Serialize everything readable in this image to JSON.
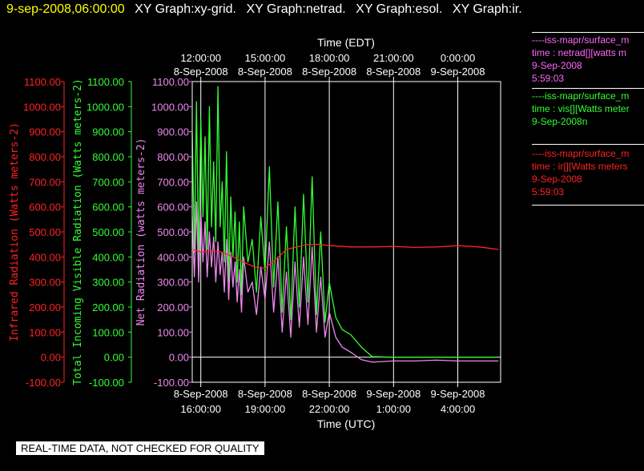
{
  "header": {
    "timestamp": "9-sep-2008,06:00:00",
    "graphs": [
      "XY Graph:xy-grid.",
      "XY Graph:netrad.",
      "XY Graph:esol.",
      "XY Graph:ir."
    ]
  },
  "legend": [
    {
      "color": "#ff66ff",
      "lines": [
        "----iss-mapr/surface_m",
        "time : netrad[][watts m",
        "9-Sep-2008",
        "5:59:03"
      ]
    },
    {
      "color": "#33ff33",
      "lines": [
        "----iss-mapr/surface_m",
        "time : vis[][Watts meter",
        "9-Sep-2008n"
      ]
    },
    {
      "color": "#ff2222",
      "lines": [
        "----iss-mapr/surface_m",
        "time : ir[][Watts meters",
        "9-Sep-2008",
        "5:59:03"
      ]
    }
  ],
  "footer": "REAL-TIME DATA, NOT CHECKED FOR QUALITY",
  "colors": {
    "ir": "#ff2222",
    "vis": "#33ff33",
    "net": "#ee88ee",
    "grid": "#ffffff",
    "overlap": "#bbbbbb"
  },
  "chart_data": {
    "type": "line",
    "top_axis": {
      "title": "Time (EDT)",
      "ticks": [
        {
          "x": 16,
          "line1": "12:00:00",
          "line2": "8-Sep-2008"
        },
        {
          "x": 19,
          "line1": "15:00:00",
          "line2": "8-Sep-2008"
        },
        {
          "x": 22,
          "line1": "18:00:00",
          "line2": "8-Sep-2008"
        },
        {
          "x": 25,
          "line1": "21:00:00",
          "line2": "8-Sep-2008"
        },
        {
          "x": 28,
          "line1": "0:00:00",
          "line2": "9-Sep-2008"
        }
      ]
    },
    "bottom_axis": {
      "title": "Time (UTC)",
      "ticks": [
        {
          "x": 16,
          "line1": "8-Sep-2008",
          "line2": "16:00:00"
        },
        {
          "x": 19,
          "line1": "8-Sep-2008",
          "line2": "19:00:00"
        },
        {
          "x": 22,
          "line1": "8-Sep-2008",
          "line2": "22:00:00"
        },
        {
          "x": 25,
          "line1": "9-Sep-2008",
          "line2": "1:00:00"
        },
        {
          "x": 28,
          "line1": "9-Sep-2008",
          "line2": "4:00:00"
        }
      ]
    },
    "x_unit": "hours UTC from 8-Sep-2008 00:00",
    "xlim": [
      15.6,
      30.0
    ],
    "ylim": [
      -100,
      1100
    ],
    "y_ticks": [
      -100,
      0,
      100,
      200,
      300,
      400,
      500,
      600,
      700,
      800,
      900,
      1000,
      1100
    ],
    "y_tick_labels": [
      "-100.00",
      "0.00",
      "100.00",
      "200.00",
      "300.00",
      "400.00",
      "500.00",
      "600.00",
      "700.00",
      "800.00",
      "900.00",
      "1000.00",
      "1100.00"
    ],
    "y_axes": [
      {
        "label": "Infrared Radiation (Watts meters-2)",
        "color": "#ff2222"
      },
      {
        "label": "Total Incoming Visible Radiation (Watts meters-2)",
        "color": "#33ff33"
      },
      {
        "label": "Net Radiation (watts meters-2)",
        "color": "#ee88ee"
      }
    ],
    "series": [
      {
        "name": "vis",
        "color": "#33ff33",
        "x": [
          15.6,
          15.7,
          15.8,
          15.9,
          16.0,
          16.1,
          16.2,
          16.3,
          16.4,
          16.5,
          16.6,
          16.7,
          16.8,
          16.9,
          17.0,
          17.1,
          17.2,
          17.3,
          17.4,
          17.5,
          17.6,
          17.7,
          17.8,
          17.9,
          18.0,
          18.2,
          18.4,
          18.6,
          18.8,
          19.0,
          19.2,
          19.4,
          19.6,
          19.8,
          20.0,
          20.2,
          20.4,
          20.6,
          20.8,
          21.0,
          21.2,
          21.4,
          21.6,
          21.8,
          22.0,
          22.3,
          22.6,
          23.0,
          23.5,
          24.0,
          25.0,
          26.0,
          27.0,
          28.0,
          29.0,
          29.9
        ],
        "y": [
          900,
          420,
          1020,
          380,
          950,
          560,
          880,
          430,
          1000,
          520,
          780,
          460,
          1080,
          520,
          700,
          380,
          820,
          300,
          640,
          400,
          580,
          300,
          540,
          250,
          600,
          380,
          470,
          260,
          560,
          340,
          760,
          280,
          620,
          180,
          520,
          150,
          600,
          200,
          650,
          220,
          720,
          170,
          500,
          140,
          300,
          160,
          110,
          90,
          40,
          2,
          0,
          0,
          0,
          0,
          0,
          0
        ]
      },
      {
        "name": "net",
        "color": "#ee88ee",
        "x": [
          15.6,
          15.7,
          15.8,
          15.9,
          16.0,
          16.1,
          16.2,
          16.3,
          16.4,
          16.5,
          16.6,
          16.7,
          16.8,
          16.9,
          17.0,
          17.1,
          17.2,
          17.3,
          17.4,
          17.5,
          17.6,
          17.7,
          17.8,
          17.9,
          18.0,
          18.2,
          18.4,
          18.6,
          18.8,
          19.0,
          19.2,
          19.4,
          19.6,
          19.8,
          20.0,
          20.2,
          20.4,
          20.6,
          20.8,
          21.0,
          21.2,
          21.4,
          21.6,
          21.8,
          22.0,
          22.3,
          22.6,
          23.0,
          23.5,
          24.0,
          25.0,
          26.0,
          27.0,
          28.0,
          29.0,
          29.9
        ],
        "y": [
          560,
          320,
          620,
          300,
          580,
          380,
          540,
          320,
          500,
          360,
          480,
          300,
          460,
          330,
          420,
          260,
          470,
          230,
          420,
          280,
          380,
          220,
          350,
          180,
          400,
          260,
          300,
          170,
          360,
          230,
          460,
          180,
          400,
          100,
          340,
          80,
          380,
          120,
          400,
          130,
          440,
          100,
          320,
          80,
          180,
          80,
          40,
          20,
          -10,
          -20,
          -15,
          -15,
          -12,
          -15,
          -15,
          -15
        ]
      },
      {
        "name": "ir",
        "color": "#ff2222",
        "x": [
          15.6,
          16.0,
          16.5,
          17.0,
          17.5,
          18.0,
          18.5,
          19.0,
          19.5,
          20.0,
          20.5,
          21.0,
          21.5,
          22.0,
          23.0,
          24.0,
          25.0,
          26.0,
          27.0,
          28.0,
          29.0,
          29.9
        ],
        "y": [
          430,
          420,
          425,
          420,
          400,
          380,
          360,
          355,
          390,
          430,
          440,
          450,
          450,
          445,
          440,
          440,
          442,
          438,
          440,
          445,
          440,
          430
        ]
      }
    ]
  }
}
